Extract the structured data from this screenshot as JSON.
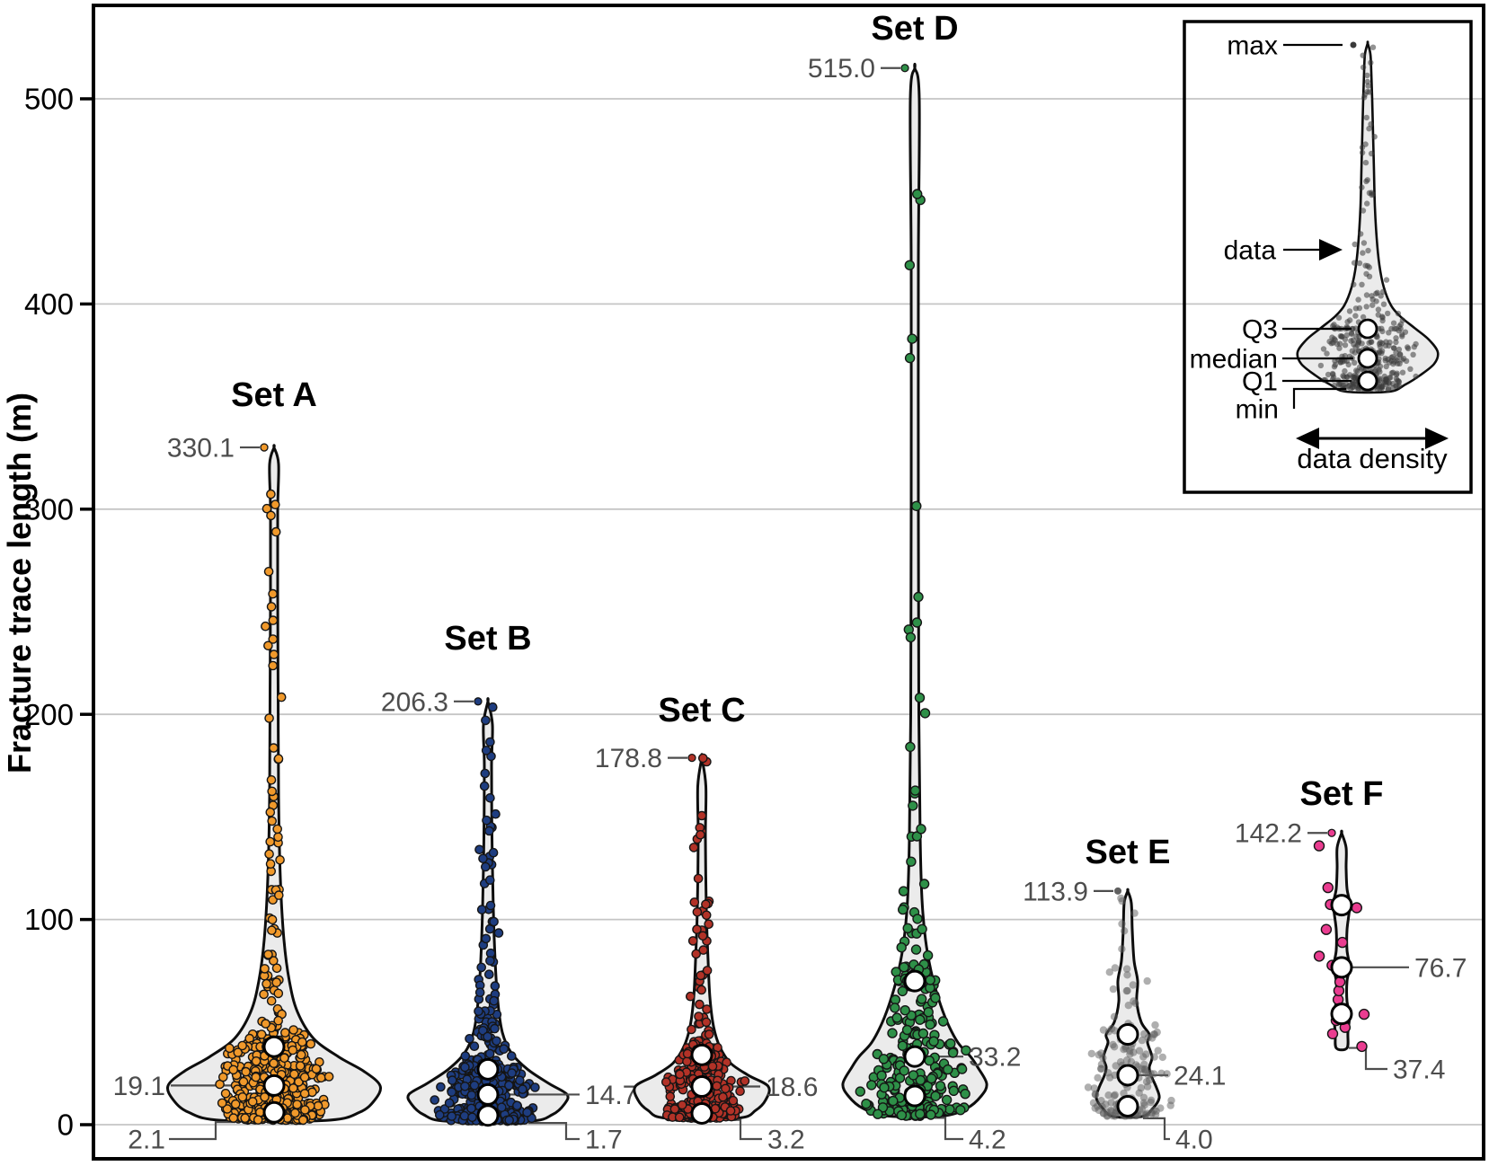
{
  "chart_data": {
    "type": "violin",
    "title": "",
    "ylabel": "Fracture trace length (m)",
    "ylim": [
      0,
      540
    ],
    "yticks": [
      0,
      100,
      200,
      300,
      400,
      500
    ],
    "ytick_labels": [
      "0",
      "100",
      "200",
      "300",
      "400",
      "500"
    ],
    "grid": "horizontal-light",
    "series": [
      {
        "name": "Set A",
        "point_color": "#F0992B",
        "stats": {
          "min": 2.1,
          "q1": 6.0,
          "median": 19.1,
          "q3": 38.0,
          "max": 330.1
        },
        "labels": {
          "max": "330.1",
          "median": "19.1",
          "min": "2.1"
        },
        "median_label_side": "left",
        "n_points": 620,
        "density_profile": [
          [
            2.1,
            58
          ],
          [
            6,
            95
          ],
          [
            12,
            112
          ],
          [
            19,
            118
          ],
          [
            26,
            100
          ],
          [
            33,
            72
          ],
          [
            42,
            44
          ],
          [
            55,
            26
          ],
          [
            70,
            17
          ],
          [
            90,
            11
          ],
          [
            120,
            7
          ],
          [
            160,
            5
          ],
          [
            210,
            4.5
          ],
          [
            260,
            4
          ],
          [
            300,
            4
          ],
          [
            322,
            5
          ],
          [
            330.1,
            0
          ]
        ]
      },
      {
        "name": "Set B",
        "point_color": "#1E3D80",
        "stats": {
          "min": 1.7,
          "q1": 4.5,
          "median": 14.7,
          "q3": 27.0,
          "max": 206.3
        },
        "labels": {
          "max": "206.3",
          "median": "14.7",
          "min": "1.7"
        },
        "median_label_side": "right",
        "n_points": 520,
        "density_profile": [
          [
            1.7,
            46
          ],
          [
            5,
            72
          ],
          [
            10,
            85
          ],
          [
            14.7,
            88
          ],
          [
            20,
            68
          ],
          [
            27,
            44
          ],
          [
            35,
            26
          ],
          [
            45,
            16
          ],
          [
            60,
            11
          ],
          [
            80,
            8
          ],
          [
            105,
            6
          ],
          [
            140,
            4.5
          ],
          [
            175,
            4
          ],
          [
            195,
            5
          ],
          [
            206.3,
            0
          ]
        ]
      },
      {
        "name": "Set C",
        "point_color": "#B23227",
        "stats": {
          "min": 3.2,
          "q1": 5.5,
          "median": 18.6,
          "q3": 34.0,
          "max": 178.8
        },
        "labels": {
          "max": "178.8",
          "median": "18.6",
          "min": "3.2"
        },
        "median_label_side": "right",
        "n_points": 360,
        "density_profile": [
          [
            3.2,
            40
          ],
          [
            7,
            60
          ],
          [
            12,
            71
          ],
          [
            18.6,
            74
          ],
          [
            24,
            52
          ],
          [
            30,
            32
          ],
          [
            38,
            20
          ],
          [
            48,
            13
          ],
          [
            62,
            9
          ],
          [
            80,
            7
          ],
          [
            105,
            5
          ],
          [
            140,
            4
          ],
          [
            165,
            4.5
          ],
          [
            178.8,
            0
          ]
        ]
      },
      {
        "name": "Set D",
        "point_color": "#2E9048",
        "stats": {
          "min": 4.2,
          "q1": 14.0,
          "median": 33.2,
          "q3": 70.0,
          "max": 515.0
        },
        "labels": {
          "max": "515.0",
          "median": "33.2",
          "min": "4.2"
        },
        "median_label_side": "right",
        "n_points": 260,
        "density_profile": [
          [
            4.2,
            30
          ],
          [
            8,
            58
          ],
          [
            14,
            74
          ],
          [
            20,
            80
          ],
          [
            28,
            70
          ],
          [
            33.2,
            62
          ],
          [
            40,
            48
          ],
          [
            50,
            36
          ],
          [
            62,
            26
          ],
          [
            75,
            18
          ],
          [
            90,
            12
          ],
          [
            110,
            8
          ],
          [
            140,
            6
          ],
          [
            200,
            4.5
          ],
          [
            300,
            4
          ],
          [
            420,
            4
          ],
          [
            500,
            5
          ],
          [
            515,
            0
          ]
        ]
      },
      {
        "name": "Set E",
        "point_color": "#606060",
        "stats": {
          "min": 4.0,
          "q1": 9.0,
          "median": 24.1,
          "q3": 44.0,
          "max": 113.9
        },
        "labels": {
          "max": "113.9",
          "median": "24.1",
          "min": "4.0"
        },
        "median_label_side": "right",
        "n_points": 170,
        "density_profile": [
          [
            4,
            16
          ],
          [
            8,
            28
          ],
          [
            13,
            35
          ],
          [
            18,
            32
          ],
          [
            24,
            26
          ],
          [
            28,
            24
          ],
          [
            33,
            27
          ],
          [
            40,
            22
          ],
          [
            44,
            24
          ],
          [
            50,
            15
          ],
          [
            60,
            10
          ],
          [
            70,
            11
          ],
          [
            80,
            7
          ],
          [
            95,
            5
          ],
          [
            108,
            4
          ],
          [
            113.9,
            0
          ]
        ]
      },
      {
        "name": "Set F",
        "point_color": "#EA3C90",
        "stats": {
          "min": 37.4,
          "q1": 54.0,
          "median": 76.7,
          "q3": 107.0,
          "max": 142.2
        },
        "labels": {
          "max": "142.2",
          "median": "76.7",
          "min": "37.4"
        },
        "median_label_side": "right",
        "n_points": 17,
        "density_profile": [
          [
            37.4,
            6
          ],
          [
            45,
            7
          ],
          [
            54,
            9
          ],
          [
            60,
            6
          ],
          [
            70,
            6
          ],
          [
            76.7,
            9
          ],
          [
            85,
            6
          ],
          [
            95,
            6
          ],
          [
            107,
            9
          ],
          [
            115,
            6
          ],
          [
            125,
            5
          ],
          [
            135,
            5
          ],
          [
            142.2,
            0
          ]
        ]
      }
    ],
    "inset_legend": {
      "labels": {
        "max": "max",
        "data": "data",
        "q3": "Q3",
        "median": "median",
        "q1": "Q1",
        "min": "min"
      },
      "axis_label": "data density"
    },
    "style": {
      "violin_fill": "#EBEBEB",
      "violin_stroke": "#0D0D0D",
      "grid_color": "#C5C5C5",
      "annotation_color": "#4D4D4D",
      "frame_color": "#000000",
      "quartile_marker_fill": "#FFFFFF",
      "inset_point_color": "#3A3A3A"
    }
  }
}
